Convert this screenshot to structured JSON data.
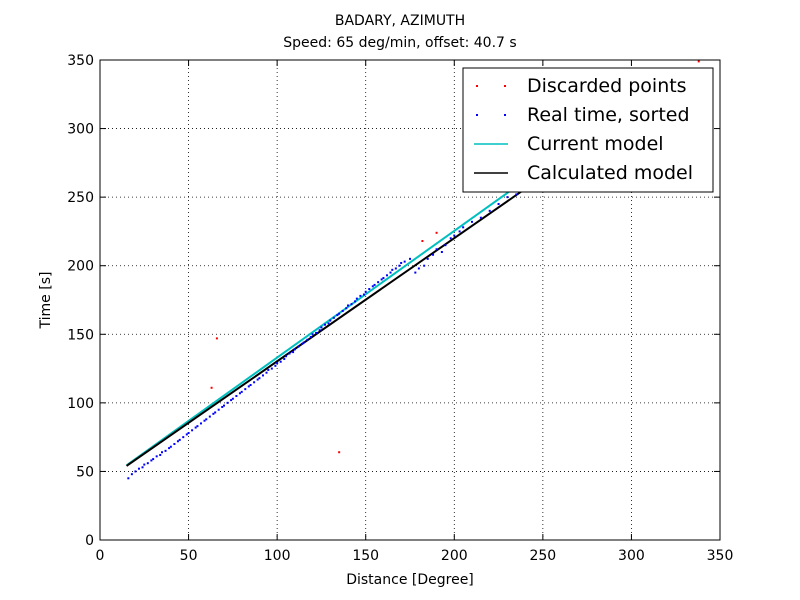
{
  "chart_data": {
    "type": "scatter",
    "title": "BADARY, AZIMUTH",
    "subtitle": "Speed: 65 deg/min, offset: 40.7 s",
    "xlabel": "Distance [Degree]",
    "ylabel": "Time [s]",
    "xlim": [
      0,
      350
    ],
    "ylim": [
      0,
      350
    ],
    "xticks": [
      "0",
      "50",
      "100",
      "150",
      "200",
      "250",
      "300",
      "350"
    ],
    "yticks": [
      "0",
      "50",
      "100",
      "150",
      "200",
      "250",
      "300",
      "350"
    ],
    "grid": true,
    "legend_position": "top-right",
    "series": [
      {
        "name": "Discarded points",
        "kind": "points",
        "color": "#ff0000",
        "x": [
          63,
          66,
          135,
          182,
          190,
          338
        ],
        "y": [
          111,
          147,
          64,
          218,
          224,
          349
        ]
      },
      {
        "name": "Real time, sorted",
        "kind": "points",
        "color": "#0000ff",
        "x": [
          16,
          18,
          20,
          22,
          24,
          25,
          27,
          29,
          30,
          32,
          34,
          35,
          37,
          39,
          40,
          42,
          44,
          45,
          47,
          49,
          50,
          52,
          54,
          55,
          57,
          59,
          60,
          62,
          64,
          65,
          67,
          69,
          70,
          72,
          74,
          75,
          77,
          79,
          80,
          82,
          84,
          85,
          87,
          89,
          90,
          92,
          94,
          95,
          97,
          99,
          100,
          102,
          104,
          105,
          107,
          109,
          110,
          112,
          114,
          115,
          117,
          119,
          120,
          122,
          124,
          125,
          127,
          129,
          130,
          132,
          134,
          135,
          137,
          139,
          140,
          142,
          144,
          145,
          147,
          149,
          150,
          152,
          154,
          155,
          157,
          159,
          160,
          162,
          164,
          165,
          167,
          169,
          170,
          172,
          175,
          178,
          180,
          183,
          185,
          188,
          190,
          193,
          195,
          198,
          200,
          203,
          205,
          210,
          215,
          220,
          225,
          230,
          235,
          240,
          245
        ],
        "y": [
          45,
          48,
          50,
          52,
          53,
          55,
          56,
          58,
          59,
          61,
          62,
          64,
          65,
          67,
          68,
          70,
          72,
          73,
          75,
          77,
          78,
          80,
          82,
          83,
          85,
          87,
          88,
          90,
          92,
          93,
          95,
          97,
          98,
          100,
          102,
          103,
          105,
          107,
          108,
          110,
          112,
          113,
          115,
          117,
          118,
          120,
          122,
          124,
          125,
          127,
          129,
          130,
          132,
          134,
          136,
          137,
          139,
          141,
          143,
          144,
          146,
          148,
          150,
          151,
          153,
          155,
          157,
          158,
          160,
          162,
          164,
          165,
          167,
          169,
          171,
          172,
          174,
          176,
          178,
          179,
          181,
          183,
          185,
          186,
          188,
          190,
          191,
          193,
          195,
          197,
          198,
          200,
          202,
          203,
          205,
          195,
          198,
          200,
          205,
          208,
          212,
          210,
          215,
          220,
          222,
          225,
          228,
          232,
          235,
          240,
          245,
          250,
          252,
          256,
          258
        ]
      },
      {
        "name": "Current model",
        "kind": "line",
        "color": "#00bfbf",
        "x": [
          15,
          245
        ],
        "y": [
          54.5,
          267
        ]
      },
      {
        "name": "Calculated model",
        "kind": "line",
        "color": "#000000",
        "x": [
          15,
          250
        ],
        "y": [
          54,
          265
        ]
      }
    ]
  }
}
